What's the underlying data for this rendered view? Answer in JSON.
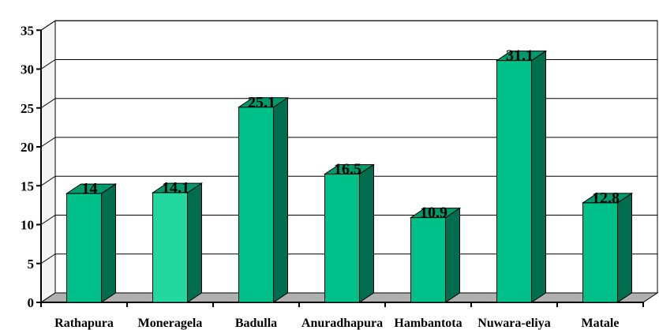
{
  "chart_data": {
    "type": "bar",
    "style": "3d",
    "categories": [
      "Rathapura",
      "Moneragela",
      "Badulla",
      "Anuradhapura",
      "Hambantota",
      "Nuwara-eliya",
      "Matale"
    ],
    "values": [
      14,
      14.1,
      25.1,
      16.5,
      10.9,
      31.1,
      12.8
    ],
    "data_labels": [
      "14",
      "14.1",
      "25.1",
      "16.5",
      "10.9",
      "31.1",
      "12.8"
    ],
    "yticks": [
      "0",
      "5",
      "10",
      "15",
      "20",
      "25",
      "30",
      "35"
    ],
    "ylim": [
      0,
      35
    ],
    "grid": true,
    "legend": "none",
    "colors": {
      "bar_front": "#00c08a",
      "bar_front_highlight": "#22d89e",
      "bar_side": "#006e4e",
      "bar_top": "#009a6c",
      "wall": "#ffffff",
      "floor": "#b0b0b0",
      "gridline": "#000000"
    }
  }
}
